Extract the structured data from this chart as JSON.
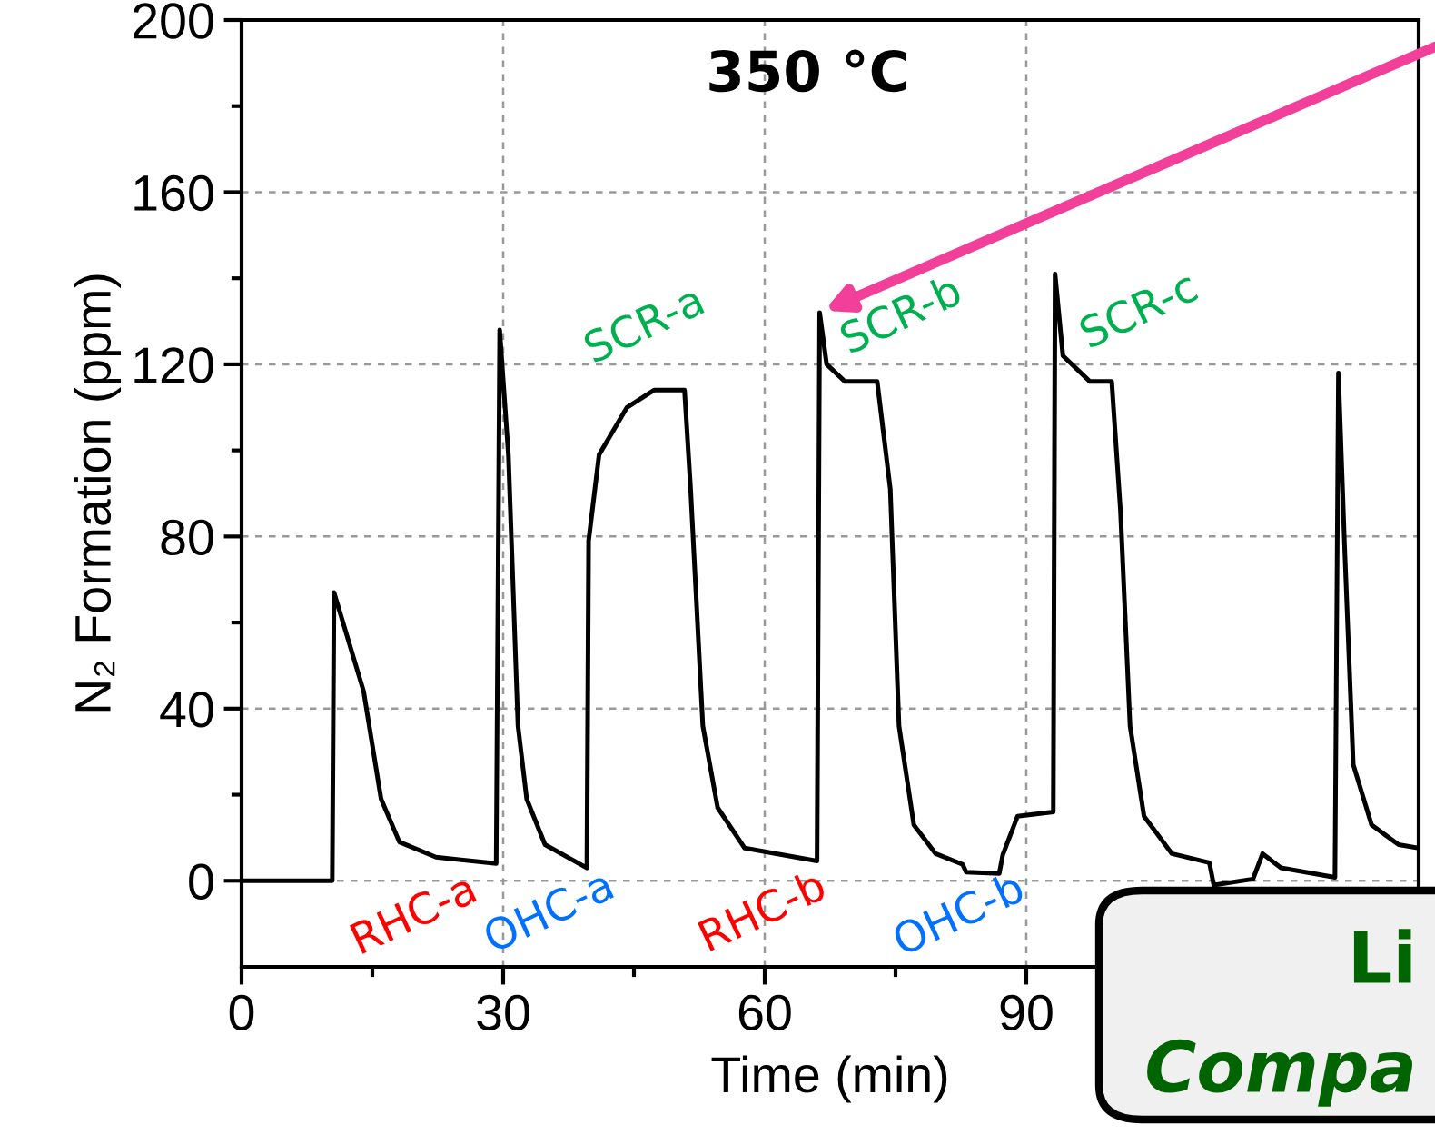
{
  "chart_data": {
    "type": "line",
    "xlabel": "Time (min)",
    "ylabel": "N₂ Formation (ppm)",
    "xlim": [
      0,
      135
    ],
    "ylim": [
      -20,
      200
    ],
    "xticks": [
      0,
      {
        "value": 15,
        "label": null
      },
      30,
      {
        "value": 45,
        "label": null
      },
      60,
      {
        "value": 75,
        "label": null
      },
      90,
      {
        "value": 105,
        "label": null
      },
      {
        "value": 120,
        "label": null
      }
    ],
    "yticks": [
      0,
      {
        "value": 20,
        "label": null
      },
      40,
      {
        "value": 60,
        "label": null
      },
      80,
      {
        "value": 100,
        "label": null
      },
      120,
      {
        "value": 140,
        "label": null
      },
      160,
      {
        "value": 180,
        "label": null
      },
      200
    ],
    "grid": true,
    "marker": "none",
    "line_style": "solid",
    "series": [
      {
        "color": "#000000",
        "x": [
          0,
          10.4,
          10.6,
          14,
          16,
          18.1,
          22.3,
          29.2,
          29.6,
          30.6,
          31.7,
          32.7,
          34.8,
          39.6,
          39.8,
          41,
          44.2,
          47.3,
          50.8,
          51.5,
          52.9,
          54.6,
          57.7,
          66,
          66.3,
          67.1,
          69.2,
          72.9,
          74.4,
          75.4,
          77.1,
          79.6,
          82.7,
          83.1,
          86.9,
          87.3,
          89,
          93.1,
          93.3,
          94.2,
          97.3,
          99.8,
          100.8,
          101.9,
          103.5,
          106.7,
          111,
          111.5,
          116,
          117.1,
          119.2,
          125.4,
          125.8,
          126.5,
          127.5,
          129.6,
          132.7,
          135
        ],
        "values": [
          0,
          0,
          67,
          44,
          19,
          9,
          5.5,
          4,
          128,
          99,
          36,
          19,
          8.4,
          3,
          79,
          99,
          110,
          114,
          114,
          91,
          36,
          17,
          7.6,
          4.6,
          132,
          120,
          116,
          116,
          91,
          36,
          13,
          6.3,
          3.8,
          2,
          1.7,
          6,
          15,
          16,
          141,
          122,
          116,
          116,
          86,
          36,
          15,
          6.3,
          4.2,
          -1,
          0.4,
          6.3,
          3,
          0.8,
          118,
          78,
          27,
          13,
          8.4,
          7.6
        ]
      }
    ],
    "annotations": [
      "350 °C",
      "SCR-a",
      "SCR-b",
      "SCR-c",
      "RHC-a",
      "OHC-a",
      "RHC-b",
      "OHC-b",
      "Li",
      "Compa"
    ]
  }
}
